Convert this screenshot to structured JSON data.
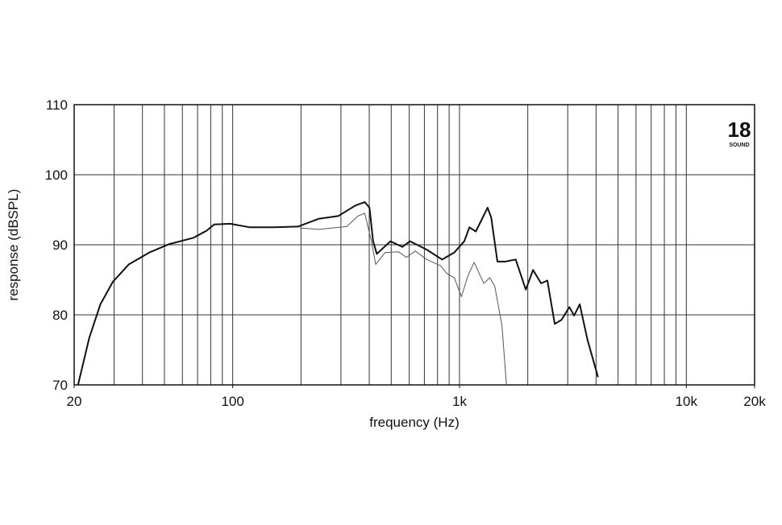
{
  "chart_data": {
    "type": "line",
    "xlabel": "frequency (Hz)",
    "ylabel": "response (dBSPL)",
    "logo": "18",
    "logo_subtitle": "SOUND",
    "xscale": "log",
    "xlim": [
      20,
      20000
    ],
    "ylim": [
      70,
      110
    ],
    "xticks": [
      20,
      100,
      {
        "value": 1000,
        "label": "1k"
      },
      {
        "value": 10000,
        "label": "10k"
      },
      {
        "value": 20000,
        "label": "20k"
      }
    ],
    "yticks": [
      70,
      80,
      90,
      100,
      110
    ],
    "xgrid": [
      20,
      30,
      40,
      50,
      60,
      70,
      80,
      90,
      100,
      200,
      300,
      400,
      500,
      600,
      700,
      800,
      900,
      1000,
      2000,
      3000,
      4000,
      5000,
      6000,
      7000,
      8000,
      9000,
      10000,
      20000
    ],
    "grid": true,
    "series": [
      {
        "color": "#111111",
        "width": 2,
        "x": [
          20.8,
          23.3,
          26.1,
          29.6,
          34.8,
          42.9,
          52.6,
          67.2,
          76.6,
          82.8,
          97.6,
          119,
          152,
          194,
          239,
          292,
          347,
          382,
          401,
          416,
          432,
          496,
          560,
          605,
          718,
          838,
          948,
          1050,
          1105,
          1180,
          1330,
          1380,
          1470,
          1590,
          1770,
          1960,
          2110,
          2290,
          2440,
          2630,
          2820,
          3050,
          3200,
          3390,
          3670,
          4080
        ],
        "values": [
          70,
          76.7,
          81.5,
          84.7,
          87.2,
          88.9,
          90.1,
          91.0,
          92.0,
          92.9,
          93.0,
          92.5,
          92.5,
          92.6,
          93.7,
          94.1,
          95.6,
          96.1,
          95.3,
          90.5,
          88.7,
          90.5,
          89.7,
          90.5,
          89.3,
          87.9,
          88.9,
          90.5,
          92.5,
          91.9,
          95.3,
          93.9,
          87.6,
          87.6,
          87.9,
          83.6,
          86.4,
          84.5,
          84.9,
          78.7,
          79.3,
          81.1,
          79.9,
          81.5,
          76.4,
          71.1
        ]
      },
      {
        "color": "#555555",
        "width": 1,
        "x": [
          198,
          239,
          318,
          357,
          382,
          409,
          427,
          470,
          538,
          583,
          638,
          718,
          826,
          880,
          948,
          1020,
          1090,
          1160,
          1280,
          1360,
          1430,
          1540,
          1610
        ],
        "values": [
          92.4,
          92.2,
          92.6,
          94.1,
          94.5,
          90.5,
          87.2,
          88.9,
          89.0,
          88.2,
          89.1,
          87.9,
          87.0,
          85.9,
          85.3,
          82.6,
          85.6,
          87.5,
          84.5,
          85.3,
          84.1,
          78.4,
          70
        ]
      }
    ]
  }
}
